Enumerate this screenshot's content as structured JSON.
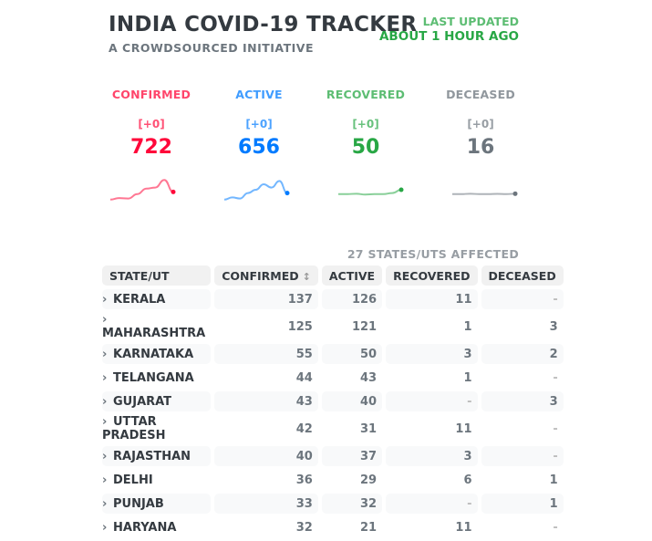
{
  "header": {
    "title": "INDIA COVID-19 TRACKER",
    "subtitle": "A CROWDSOURCED INITIATIVE",
    "last_updated_label": "LAST UPDATED",
    "last_updated_value": "ABOUT 1 HOUR AGO"
  },
  "stats": [
    {
      "label": "CONFIRMED",
      "delta": "[+0]",
      "count": "722",
      "color": "#ff073a",
      "trend": [
        0.05,
        0.12,
        0.1,
        0.3,
        0.55,
        0.6,
        0.95,
        0.4
      ]
    },
    {
      "label": "ACTIVE",
      "delta": "[+0]",
      "count": "656",
      "color": "#007bff",
      "trend": [
        0.05,
        0.15,
        0.1,
        0.35,
        0.5,
        0.75,
        0.6,
        0.9,
        0.35
      ]
    },
    {
      "label": "RECOVERED",
      "delta": "[+0]",
      "count": "50",
      "color": "#28a745",
      "trend": [
        0.3,
        0.3,
        0.32,
        0.28,
        0.3,
        0.3,
        0.35,
        0.5
      ]
    },
    {
      "label": "DECEASED",
      "delta": "[+0]",
      "count": "16",
      "color": "#6c757d",
      "trend": [
        0.3,
        0.3,
        0.32,
        0.3,
        0.3,
        0.31,
        0.3,
        0.32
      ]
    }
  ],
  "affected_text": "27 STATES/UTS AFFECTED",
  "table": {
    "headers": {
      "state": "STATE/UT",
      "confirmed": "CONFIRMED",
      "active": "ACTIVE",
      "recovered": "RECOVERED",
      "deceased": "DECEASED"
    },
    "rows": [
      {
        "state": "KERALA",
        "confirmed": "137",
        "active": "126",
        "recovered": "11",
        "deceased": "-"
      },
      {
        "state": "MAHARASHTRA",
        "confirmed": "125",
        "active": "121",
        "recovered": "1",
        "deceased": "3"
      },
      {
        "state": "KARNATAKA",
        "confirmed": "55",
        "active": "50",
        "recovered": "3",
        "deceased": "2"
      },
      {
        "state": "TELANGANA",
        "confirmed": "44",
        "active": "43",
        "recovered": "1",
        "deceased": "-"
      },
      {
        "state": "GUJARAT",
        "confirmed": "43",
        "active": "40",
        "recovered": "-",
        "deceased": "3"
      },
      {
        "state": "UTTAR PRADESH",
        "confirmed": "42",
        "active": "31",
        "recovered": "11",
        "deceased": "-"
      },
      {
        "state": "RAJASTHAN",
        "confirmed": "40",
        "active": "37",
        "recovered": "3",
        "deceased": "-"
      },
      {
        "state": "DELHI",
        "confirmed": "36",
        "active": "29",
        "recovered": "6",
        "deceased": "1"
      },
      {
        "state": "PUNJAB",
        "confirmed": "33",
        "active": "32",
        "recovered": "-",
        "deceased": "1"
      },
      {
        "state": "HARYANA",
        "confirmed": "32",
        "active": "21",
        "recovered": "11",
        "deceased": "-"
      }
    ]
  }
}
